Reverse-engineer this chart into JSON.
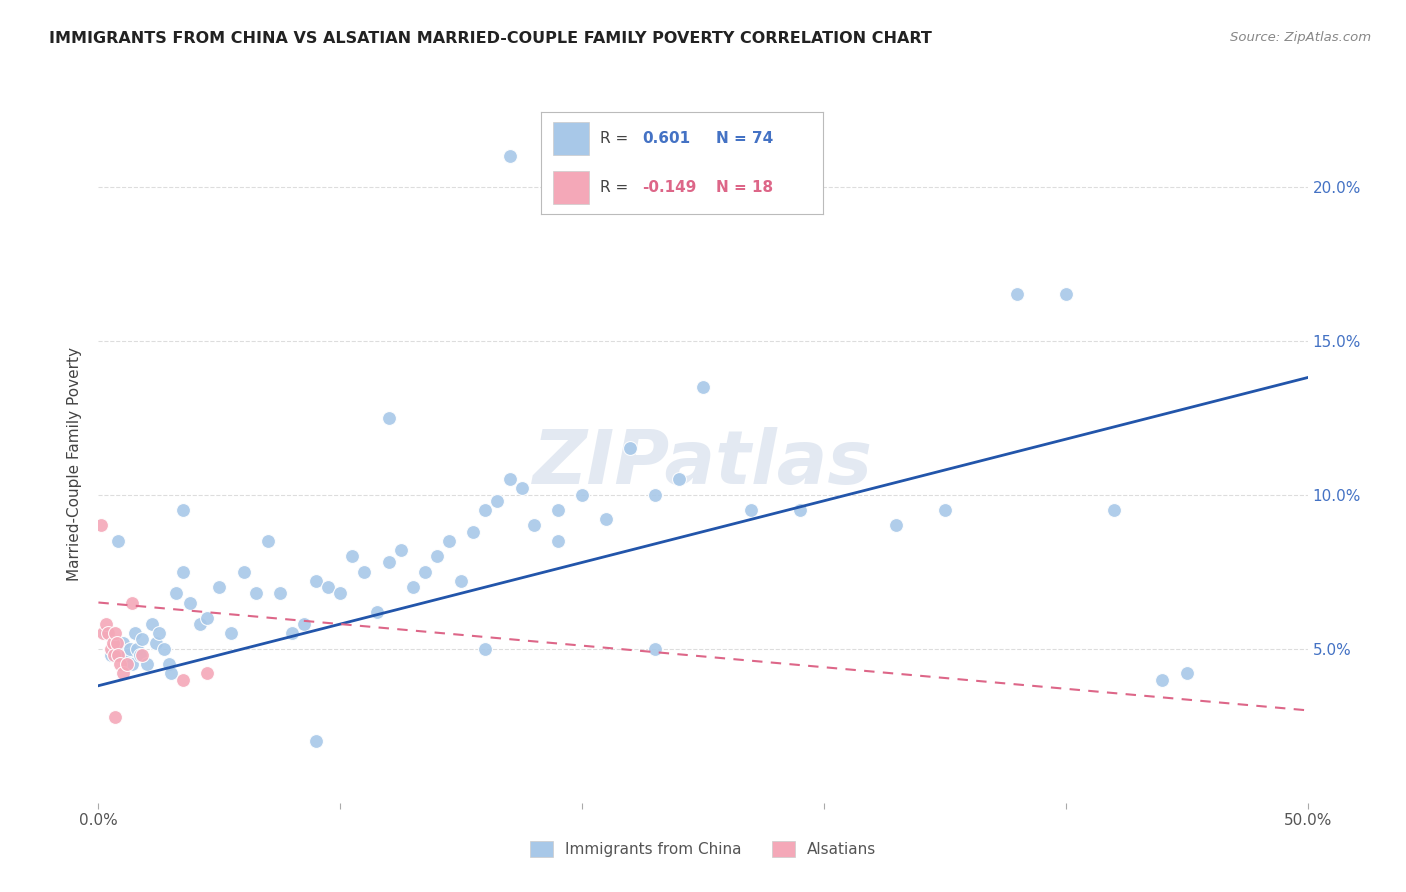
{
  "title": "IMMIGRANTS FROM CHINA VS ALSATIAN MARRIED-COUPLE FAMILY POVERTY CORRELATION CHART",
  "source": "Source: ZipAtlas.com",
  "ylabel": "Married-Couple Family Poverty",
  "legend_blue_label": "Immigrants from China",
  "legend_pink_label": "Alsatians",
  "watermark": "ZIPatlas",
  "blue_color": "#a8c8e8",
  "pink_color": "#f4a8b8",
  "blue_line_color": "#2255aa",
  "pink_line_color": "#dd6688",
  "blue_scatter": [
    [
      0.3,
      5.5
    ],
    [
      0.5,
      4.8
    ],
    [
      0.8,
      8.5
    ],
    [
      1.0,
      5.2
    ],
    [
      1.2,
      4.8
    ],
    [
      1.3,
      5.0
    ],
    [
      1.4,
      4.5
    ],
    [
      1.5,
      5.5
    ],
    [
      1.6,
      5.0
    ],
    [
      1.7,
      4.8
    ],
    [
      1.8,
      5.3
    ],
    [
      2.0,
      4.5
    ],
    [
      2.2,
      5.8
    ],
    [
      2.4,
      5.2
    ],
    [
      2.5,
      5.5
    ],
    [
      2.7,
      5.0
    ],
    [
      2.9,
      4.5
    ],
    [
      3.0,
      4.2
    ],
    [
      3.2,
      6.8
    ],
    [
      3.5,
      7.5
    ],
    [
      3.8,
      6.5
    ],
    [
      4.2,
      5.8
    ],
    [
      4.5,
      6.0
    ],
    [
      5.0,
      7.0
    ],
    [
      5.5,
      5.5
    ],
    [
      6.0,
      7.5
    ],
    [
      6.5,
      6.8
    ],
    [
      7.0,
      8.5
    ],
    [
      7.5,
      6.8
    ],
    [
      8.0,
      5.5
    ],
    [
      8.5,
      5.8
    ],
    [
      9.0,
      7.2
    ],
    [
      9.5,
      7.0
    ],
    [
      10.0,
      6.8
    ],
    [
      10.5,
      8.0
    ],
    [
      11.0,
      7.5
    ],
    [
      11.5,
      6.2
    ],
    [
      12.0,
      7.8
    ],
    [
      12.5,
      8.2
    ],
    [
      13.0,
      7.0
    ],
    [
      13.5,
      7.5
    ],
    [
      14.0,
      8.0
    ],
    [
      14.5,
      8.5
    ],
    [
      15.0,
      7.2
    ],
    [
      15.5,
      8.8
    ],
    [
      16.0,
      9.5
    ],
    [
      16.5,
      9.8
    ],
    [
      17.0,
      10.5
    ],
    [
      17.5,
      10.2
    ],
    [
      18.0,
      9.0
    ],
    [
      19.0,
      9.5
    ],
    [
      20.0,
      10.0
    ],
    [
      21.0,
      9.2
    ],
    [
      22.0,
      11.5
    ],
    [
      23.0,
      10.0
    ],
    [
      24.0,
      10.5
    ],
    [
      25.0,
      13.5
    ],
    [
      27.0,
      9.5
    ],
    [
      29.0,
      9.5
    ],
    [
      33.0,
      9.0
    ],
    [
      35.0,
      9.5
    ],
    [
      38.0,
      16.5
    ],
    [
      40.0,
      16.5
    ],
    [
      42.0,
      9.5
    ],
    [
      17.0,
      21.0
    ],
    [
      12.0,
      12.5
    ],
    [
      3.5,
      9.5
    ],
    [
      16.0,
      5.0
    ],
    [
      9.0,
      2.0
    ],
    [
      19.0,
      8.5
    ],
    [
      23.0,
      5.0
    ],
    [
      44.0,
      4.0
    ],
    [
      45.0,
      4.2
    ]
  ],
  "pink_scatter": [
    [
      0.1,
      9.0
    ],
    [
      0.2,
      5.5
    ],
    [
      0.3,
      5.8
    ],
    [
      0.4,
      5.5
    ],
    [
      0.5,
      5.0
    ],
    [
      0.6,
      5.2
    ],
    [
      0.65,
      4.8
    ],
    [
      0.7,
      5.5
    ],
    [
      0.75,
      5.2
    ],
    [
      0.8,
      4.8
    ],
    [
      0.9,
      4.5
    ],
    [
      1.0,
      4.2
    ],
    [
      1.2,
      4.5
    ],
    [
      1.4,
      6.5
    ],
    [
      1.8,
      4.8
    ],
    [
      3.5,
      4.0
    ],
    [
      4.5,
      4.2
    ],
    [
      0.7,
      2.8
    ]
  ],
  "blue_line_x": [
    0,
    50
  ],
  "blue_line_y": [
    3.8,
    13.8
  ],
  "pink_line_x": [
    0,
    50
  ],
  "pink_line_y": [
    6.5,
    3.0
  ],
  "xlim": [
    0,
    50
  ],
  "ylim": [
    0,
    22
  ],
  "ytick_vals": [
    5.0,
    10.0,
    15.0,
    20.0
  ],
  "xtick_vals": [
    0.0,
    50.0
  ],
  "background_color": "#ffffff",
  "grid_color": "#dddddd"
}
